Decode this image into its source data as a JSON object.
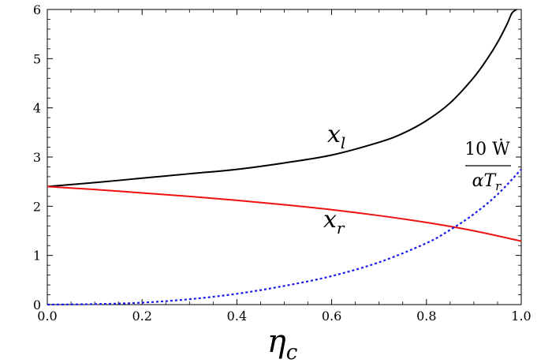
{
  "chart_data": {
    "type": "line",
    "xlabel": "η",
    "xlabel_sub": "c",
    "ylabel": "",
    "xlim": [
      0,
      1
    ],
    "ylim": [
      0,
      6
    ],
    "x_ticks": [
      "0.0",
      "0.2",
      "0.4",
      "0.6",
      "0.8",
      "1.0"
    ],
    "y_ticks": [
      "0",
      "1",
      "2",
      "3",
      "4",
      "5",
      "6"
    ],
    "grid": false,
    "series": [
      {
        "name": "x_l",
        "label_main": "x",
        "label_sub": "l",
        "color": "#000000",
        "style": "solid",
        "x": [
          0.0,
          0.1,
          0.2,
          0.3,
          0.4,
          0.5,
          0.6,
          0.7,
          0.75,
          0.8,
          0.85,
          0.9,
          0.93,
          0.95,
          0.97,
          0.98,
          0.99
        ],
        "y": [
          2.4,
          2.48,
          2.57,
          2.66,
          2.75,
          2.88,
          3.04,
          3.3,
          3.48,
          3.74,
          4.1,
          4.62,
          5.02,
          5.33,
          5.7,
          5.92,
          6.0
        ]
      },
      {
        "name": "x_r",
        "label_main": "x",
        "label_sub": "r",
        "color": "#ee1111",
        "style": "solid",
        "x": [
          0.0,
          0.1,
          0.2,
          0.3,
          0.4,
          0.5,
          0.6,
          0.7,
          0.8,
          0.9,
          1.0
        ],
        "y": [
          2.4,
          2.34,
          2.27,
          2.2,
          2.12,
          2.03,
          1.93,
          1.81,
          1.67,
          1.5,
          1.29
        ]
      },
      {
        "name": "10 Ẇ / αT_r",
        "label_numerator": "10 Ẇ",
        "label_denominator_main": "αT",
        "label_denominator_sub": "r",
        "color": "#1a1aee",
        "style": "dotted",
        "x": [
          0.0,
          0.1,
          0.2,
          0.3,
          0.4,
          0.5,
          0.6,
          0.7,
          0.8,
          0.85,
          0.9,
          0.95,
          1.0
        ],
        "y": [
          0.0,
          0.01,
          0.04,
          0.11,
          0.22,
          0.38,
          0.58,
          0.86,
          1.25,
          1.52,
          1.84,
          2.24,
          2.75
        ]
      }
    ]
  }
}
